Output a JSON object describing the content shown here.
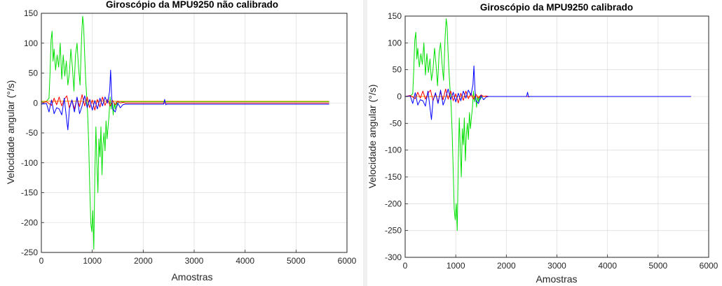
{
  "chart_data": [
    {
      "type": "line",
      "title": "Giroscópio da MPU9250 não calibrado",
      "xlabel": "Amostras",
      "ylabel": "Velocidade angular (°/s)",
      "xlim": [
        0,
        6000
      ],
      "ylim": [
        -250,
        150
      ],
      "xticks": [
        0,
        1000,
        2000,
        3000,
        4000,
        5000,
        6000
      ],
      "yticks": [
        -250,
        -200,
        -150,
        -100,
        -50,
        0,
        50,
        100,
        150
      ],
      "grid": true,
      "series": [
        {
          "color": "#00e000",
          "x": [
            0,
            100,
            150,
            170,
            190,
            210,
            230,
            250,
            280,
            310,
            340,
            370,
            400,
            430,
            460,
            490,
            520,
            550,
            580,
            610,
            640,
            670,
            700,
            730,
            760,
            790,
            810,
            830,
            850,
            870,
            890,
            910,
            930,
            950,
            970,
            990,
            1010,
            1030,
            1050,
            1070,
            1090,
            1110,
            1130,
            1150,
            1170,
            1190,
            1210,
            1230,
            1250,
            1270,
            1290,
            1310,
            1330,
            1350,
            1370,
            1390,
            1410,
            1430,
            1450,
            1470,
            1490,
            1510,
            1530,
            1560,
            1600,
            1650,
            1700,
            5650
          ],
          "y": [
            2,
            3,
            8,
            50,
            105,
            120,
            70,
            90,
            55,
            80,
            60,
            100,
            40,
            80,
            45,
            70,
            30,
            50,
            90,
            60,
            20,
            80,
            100,
            60,
            30,
            110,
            145,
            130,
            80,
            40,
            10,
            -20,
            -70,
            -140,
            -200,
            -215,
            -180,
            -245,
            -120,
            -40,
            -100,
            -150,
            -60,
            -90,
            -40,
            -120,
            -70,
            -50,
            -80,
            -30,
            -60,
            -40,
            -20,
            10,
            -10,
            5,
            -20,
            0,
            -10,
            2,
            -5,
            1,
            3,
            2,
            2,
            2,
            2,
            2
          ]
        },
        {
          "color": "#ff9900",
          "x": [
            0,
            5650
          ],
          "y": [
            3,
            3
          ]
        },
        {
          "color": "#ff0000",
          "x": [
            0,
            100,
            200,
            250,
            300,
            350,
            400,
            450,
            500,
            550,
            600,
            650,
            700,
            750,
            800,
            850,
            900,
            950,
            1000,
            1050,
            1100,
            1150,
            1200,
            1250,
            1300,
            1350,
            1400,
            1450,
            1500,
            1550,
            1600,
            1650,
            5650
          ],
          "y": [
            0,
            2,
            -4,
            8,
            -3,
            10,
            -5,
            6,
            12,
            -8,
            5,
            -10,
            8,
            -6,
            14,
            -5,
            10,
            -8,
            5,
            -12,
            6,
            -7,
            10,
            -4,
            6,
            -5,
            4,
            -3,
            3,
            0,
            1,
            0,
            0
          ]
        },
        {
          "color": "#0000ff",
          "x": [
            0,
            100,
            150,
            200,
            250,
            300,
            350,
            400,
            450,
            500,
            520,
            550,
            600,
            650,
            700,
            750,
            800,
            850,
            900,
            950,
            1000,
            1050,
            1100,
            1150,
            1200,
            1250,
            1300,
            1340,
            1360,
            1380,
            1400,
            1450,
            1500,
            1550,
            1600,
            1650,
            1700,
            2400,
            2420,
            2440,
            2460,
            5650
          ],
          "y": [
            -2,
            -1,
            -15,
            5,
            -18,
            -8,
            -10,
            -20,
            8,
            -30,
            -45,
            -10,
            5,
            -15,
            10,
            -18,
            -5,
            12,
            -8,
            6,
            -12,
            4,
            -10,
            8,
            -5,
            10,
            0,
            20,
            55,
            10,
            -10,
            -15,
            0,
            -8,
            -3,
            -2,
            -2,
            -2,
            6,
            -3,
            -2,
            -2
          ]
        }
      ]
    },
    {
      "type": "line",
      "title": "Giroscópio da MPU9250 calibrado",
      "xlabel": "Amostras",
      "ylabel": "Velocidade angular (°/s)",
      "xlim": [
        0,
        6000
      ],
      "ylim": [
        -300,
        150
      ],
      "xticks": [
        0,
        1000,
        2000,
        3000,
        4000,
        5000,
        6000
      ],
      "yticks": [
        -300,
        -250,
        -200,
        -150,
        -100,
        -50,
        0,
        50,
        100,
        150
      ],
      "grid": true,
      "series": [
        {
          "color": "#00e000",
          "x": [
            0,
            100,
            150,
            170,
            190,
            210,
            230,
            250,
            280,
            310,
            340,
            370,
            400,
            430,
            460,
            490,
            520,
            550,
            580,
            610,
            640,
            670,
            700,
            730,
            760,
            790,
            810,
            830,
            850,
            870,
            890,
            910,
            930,
            950,
            970,
            990,
            1010,
            1030,
            1050,
            1070,
            1090,
            1110,
            1130,
            1150,
            1170,
            1190,
            1210,
            1230,
            1250,
            1270,
            1290,
            1310,
            1330,
            1350,
            1370,
            1390,
            1410,
            1430,
            1450,
            1470,
            1490,
            1510,
            1530,
            1560,
            1600,
            1650,
            1700,
            5650
          ],
          "y": [
            0,
            1,
            5,
            50,
            105,
            120,
            70,
            90,
            55,
            80,
            60,
            100,
            40,
            80,
            45,
            70,
            30,
            50,
            90,
            60,
            20,
            80,
            100,
            60,
            30,
            110,
            145,
            130,
            80,
            40,
            10,
            -20,
            -70,
            -140,
            -210,
            -230,
            -200,
            -250,
            -120,
            -40,
            -100,
            -150,
            -60,
            -90,
            -40,
            -120,
            -70,
            -50,
            -80,
            -30,
            -60,
            -40,
            -20,
            10,
            -10,
            5,
            -20,
            0,
            -10,
            1,
            -5,
            0,
            1,
            0,
            0,
            0,
            0,
            0
          ]
        },
        {
          "color": "#ff9900",
          "x": [
            0,
            5650
          ],
          "y": [
            0,
            0
          ]
        },
        {
          "color": "#ff0000",
          "x": [
            0,
            100,
            200,
            250,
            300,
            350,
            400,
            450,
            500,
            550,
            600,
            650,
            700,
            750,
            800,
            850,
            900,
            950,
            1000,
            1050,
            1100,
            1150,
            1200,
            1250,
            1300,
            1350,
            1400,
            1450,
            1500,
            1550,
            1600,
            1650,
            5650
          ],
          "y": [
            0,
            2,
            -4,
            8,
            -3,
            10,
            -5,
            6,
            12,
            -8,
            5,
            -10,
            8,
            -6,
            14,
            -5,
            10,
            -8,
            5,
            -12,
            6,
            -7,
            10,
            -4,
            6,
            -5,
            4,
            -3,
            3,
            0,
            1,
            0,
            0
          ]
        },
        {
          "color": "#0000ff",
          "x": [
            0,
            100,
            150,
            200,
            250,
            300,
            350,
            400,
            450,
            500,
            520,
            550,
            600,
            650,
            700,
            750,
            800,
            850,
            900,
            950,
            1000,
            1050,
            1100,
            1150,
            1200,
            1250,
            1300,
            1340,
            1360,
            1380,
            1400,
            1450,
            1500,
            1550,
            1600,
            1650,
            1700,
            2400,
            2420,
            2440,
            2460,
            5650
          ],
          "y": [
            0,
            1,
            -13,
            7,
            -16,
            -6,
            -8,
            -18,
            10,
            -28,
            -43,
            -8,
            7,
            -13,
            12,
            -16,
            -3,
            14,
            -6,
            8,
            -10,
            6,
            -8,
            10,
            -3,
            12,
            2,
            22,
            57,
            12,
            -8,
            -13,
            2,
            -6,
            -1,
            0,
            0,
            0,
            8,
            -1,
            0,
            0
          ]
        }
      ]
    }
  ]
}
